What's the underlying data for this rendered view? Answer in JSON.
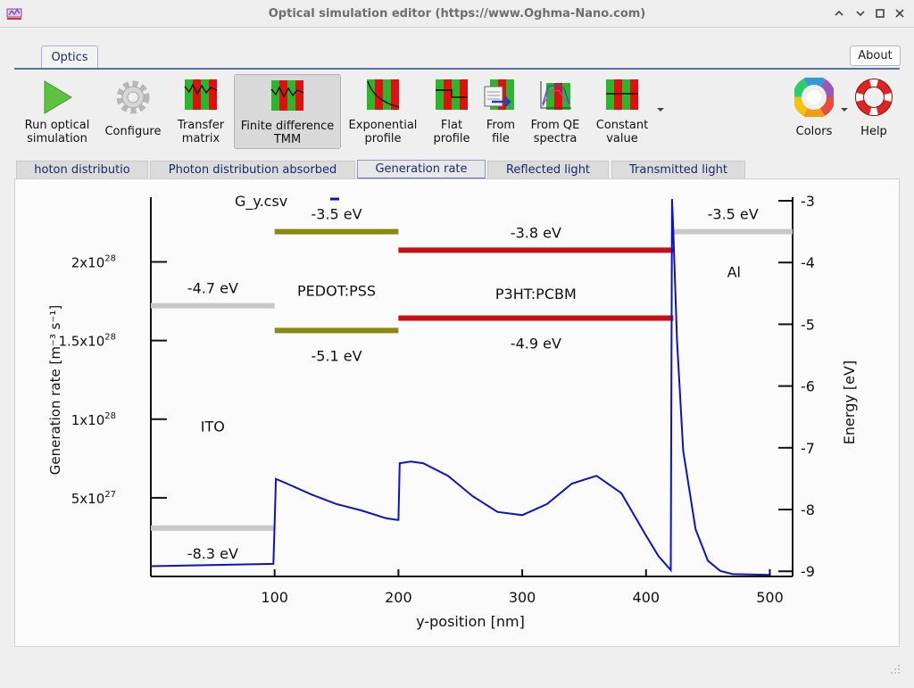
{
  "window": {
    "title": "Optical simulation editor (https://www.Oghma-Nano.com)",
    "buttons": [
      "minimize-chevron",
      "restore-chevron",
      "maximize",
      "close"
    ]
  },
  "menu": {
    "tab_label": "Optics",
    "about_label": "About"
  },
  "toolbar": {
    "items": [
      {
        "id": "run",
        "label": "Run optical\nsimulation",
        "icon": "play-icon"
      },
      {
        "id": "configure",
        "label": "Configure",
        "icon": "gear-icon"
      },
      {
        "id": "transfer",
        "label": "Transfer\nmatrix",
        "icon": "transfer-matrix-icon"
      },
      {
        "id": "fdtmm",
        "label": "Finite difference\nTMM",
        "icon": "finite-difference-icon",
        "active": true
      },
      {
        "id": "exp",
        "label": "Exponential\nprofile",
        "icon": "exponential-profile-icon"
      },
      {
        "id": "flat",
        "label": "Flat\nprofile",
        "icon": "flat-profile-icon"
      },
      {
        "id": "fromfile",
        "label": "From\nfile",
        "icon": "from-file-icon"
      },
      {
        "id": "qe",
        "label": "From QE\nspectra",
        "icon": "qe-spectra-icon"
      },
      {
        "id": "const",
        "label": "Constant\nvalue",
        "icon": "constant-value-icon"
      },
      {
        "id": "colors",
        "label": "Colors",
        "icon": "color-wheel-icon"
      },
      {
        "id": "help",
        "label": "Help",
        "icon": "lifebuoy-icon"
      }
    ]
  },
  "tabs": {
    "items": [
      "hoton distributio",
      "Photon distribution absorbed",
      "Generation rate",
      "Reflected light",
      "Transmitted light"
    ],
    "active": 2
  },
  "chart_data": {
    "type": "line",
    "legend": [
      "G_y.csv"
    ],
    "legend_placement": "top-left",
    "xlabel": "y-position [nm]",
    "ylabel": "Generation rate [m⁻³ s⁻¹]",
    "y2label": "Energy [eV]",
    "xlim": [
      -100,
      520
    ],
    "ylim": [
      0,
      2.4e+28
    ],
    "y2lim": [
      -9.05,
      -2.95
    ],
    "xticks": [
      100,
      200,
      300,
      400,
      500
    ],
    "yticks": [
      {
        "value": 5e+27,
        "mant": "5x10",
        "exp": "27"
      },
      {
        "value": 1e+28,
        "mant": "1x10",
        "exp": "28"
      },
      {
        "value": 1.5e+28,
        "mant": "1.5x10",
        "exp": "28"
      },
      {
        "value": 2e+28,
        "mant": "2x10",
        "exp": "28"
      }
    ],
    "y2ticks": [
      -3,
      -4,
      -5,
      -6,
      -7,
      -8,
      -9
    ],
    "series": [
      {
        "name": "G_y.csv",
        "color": "#1010c8",
        "x": [
          0,
          99,
          100,
          101,
          110,
          130,
          150,
          170,
          190,
          199,
          200,
          201,
          210,
          220,
          240,
          260,
          280,
          300,
          320,
          340,
          360,
          380,
          400,
          410,
          420,
          421,
          422,
          425,
          430,
          440,
          450,
          460,
          470,
          500
        ],
        "y": [
          6.5e+26,
          8e+26,
          3.4e+27,
          6.2e+27,
          5.9e+27,
          5.2e+27,
          4.6e+27,
          4.2e+27,
          3.7e+27,
          3.6e+27,
          3.6e+27,
          7.2e+27,
          7.3e+27,
          7.2e+27,
          6.4e+27,
          5.1e+27,
          4.1e+27,
          3.9e+27,
          4.6e+27,
          5.9e+27,
          6.4e+27,
          5.3e+27,
          2.6e+27,
          1.3e+27,
          4e+26,
          2.4e+28,
          2.2e+28,
          1.5e+28,
          8e+27,
          3e+27,
          1e+27,
          3.5e+26,
          1.5e+26,
          1e+26
        ]
      }
    ],
    "bands": [
      {
        "x0": 0,
        "x1": 100,
        "energy": -4.7,
        "color": "#c8c8c8",
        "label": "-4.7 eV",
        "label_pos": "above"
      },
      {
        "x0": 0,
        "x1": 100,
        "energy": -8.3,
        "color": "#c8c8c8",
        "label": "-8.3 eV",
        "label_pos": "below"
      },
      {
        "x0": 100,
        "x1": 200,
        "energy": -3.5,
        "color": "#8a8a10",
        "label": "-3.5 eV",
        "label_pos": "above"
      },
      {
        "x0": 100,
        "x1": 200,
        "energy": -5.1,
        "color": "#8a8a10",
        "label": "-5.1 eV",
        "label_pos": "below"
      },
      {
        "x0": 200,
        "x1": 422,
        "energy": -3.8,
        "color": "#c81010",
        "label": "-3.8 eV",
        "label_pos": "above"
      },
      {
        "x0": 200,
        "x1": 422,
        "energy": -4.9,
        "color": "#c81010",
        "label": "-4.9 eV",
        "label_pos": "below"
      },
      {
        "x0": 422,
        "x1": 520,
        "energy": -3.5,
        "color": "#c8c8c8",
        "label": "-3.5 eV",
        "label_pos": "above"
      }
    ],
    "layers": [
      {
        "name": "ITO",
        "x": 50,
        "energy": -6.65
      },
      {
        "name": "PEDOT:PSS",
        "x": 150,
        "energy": -4.45
      },
      {
        "name": "P3HT:PCBM",
        "x": 311,
        "energy": -4.5
      },
      {
        "name": "Al",
        "x": 471,
        "energy": -4.15
      }
    ]
  }
}
